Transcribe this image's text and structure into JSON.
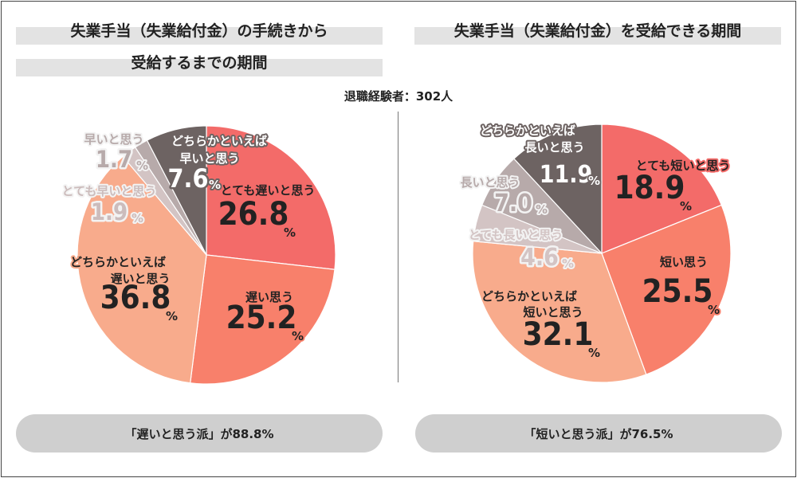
{
  "left_panel": {
    "title_line1": "失業手当（失業給付金）の手続きから",
    "title_line2": "受給するまでの期間",
    "summary": "「遅いと思う派」が88.8%"
  },
  "right_panel": {
    "title": "失業手当（失業給付金）を受給できる期間",
    "summary": "「短いと思う派」が76.5%"
  },
  "respondents": "退職経験者：302人",
  "colors": {
    "very": "#f36b69",
    "moderately": "#f8806b",
    "somewhat": "#f8ab8c",
    "opposite_strong": "#d3c4c4",
    "opposite_mid": "#b7aaaa",
    "opposite_somewhat": "#6d6362"
  },
  "chart_data": [
    {
      "type": "pie",
      "title": "失業手当（失業給付金）の手続きから受給するまでの期間",
      "unit": "%",
      "slices": [
        {
          "label": "とても遅いと思う",
          "value": 26.8,
          "display": "26.8",
          "color": "#f36b69"
        },
        {
          "label": "遅い思う",
          "value": 25.2,
          "display": "25.2",
          "color": "#f8806b"
        },
        {
          "label": "どちらかといえば 遅いと思う",
          "value": 36.8,
          "display": "36.8",
          "color": "#f8ab8c"
        },
        {
          "label": "とても早いと思う",
          "value": 1.9,
          "display": "1.9",
          "color": "#d3c4c4"
        },
        {
          "label": "早いと思う",
          "value": 1.7,
          "display": "1.7",
          "color": "#b7aaaa"
        },
        {
          "label": "どちらかといえば 早いと思う",
          "value": 7.6,
          "display": "7.6",
          "color": "#6d6362"
        }
      ]
    },
    {
      "type": "pie",
      "title": "失業手当（失業給付金）を受給できる期間",
      "unit": "%",
      "slices": [
        {
          "label": "とても短いと思う",
          "value": 18.9,
          "display": "18.9",
          "color": "#f36b69"
        },
        {
          "label": "短い思う",
          "value": 25.5,
          "display": "25.5",
          "color": "#f8806b"
        },
        {
          "label": "どちらかといえば 短いと思う",
          "value": 32.1,
          "display": "32.1",
          "color": "#f8ab8c"
        },
        {
          "label": "とても長いと思う",
          "value": 4.6,
          "display": "4.6",
          "color": "#d3c4c4"
        },
        {
          "label": "長いと思う",
          "value": 7.0,
          "display": "7.0",
          "color": "#b7aaaa"
        },
        {
          "label": "どちらかといえば 長いと思う",
          "value": 11.9,
          "display": "11.9",
          "color": "#6d6362"
        }
      ]
    }
  ]
}
